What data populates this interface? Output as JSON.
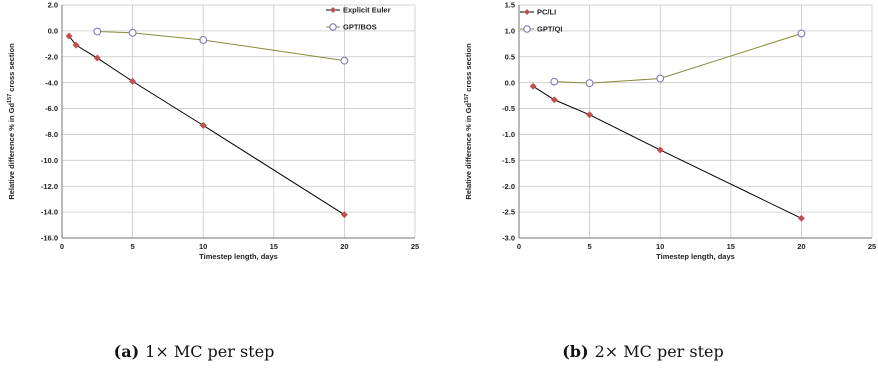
{
  "chart_data": [
    {
      "type": "line",
      "ylabel": "Relative difference % in Gd157 cross section",
      "ylabel_parts": [
        "Relative difference % in Gd",
        "157",
        " cross section"
      ],
      "xlabel": "Timestep length, days",
      "xlim": [
        0,
        25
      ],
      "ylim": [
        -16,
        2
      ],
      "xticks": [
        "0",
        "5",
        "10",
        "15",
        "20",
        "25"
      ],
      "yticks": [
        "2.0",
        "0.0",
        "-2.0",
        "-4.0",
        "-6.0",
        "-8.0",
        "-10.0",
        "-12.0",
        "-14.0",
        "-16.0"
      ],
      "ytick_values": [
        2,
        0,
        -2,
        -4,
        -6,
        -8,
        -10,
        -12,
        -14,
        -16
      ],
      "xtick_values": [
        0,
        5,
        10,
        15,
        20,
        25
      ],
      "grid": true,
      "legend_position": "top-right",
      "series": [
        {
          "name": "Explicit Euler",
          "marker": "diamond",
          "color": "#c0504d",
          "line_color": "#000000",
          "x": [
            0.5,
            1,
            2.5,
            5,
            10,
            20
          ],
          "y": [
            -0.4,
            -1.1,
            -2.1,
            -3.9,
            -7.3,
            -14.2
          ]
        },
        {
          "name": "GPT/BOS",
          "marker": "circle",
          "color": "#7c6fb0",
          "line_color": "#8a8a3a",
          "x": [
            2.5,
            5,
            10,
            20
          ],
          "y": [
            -0.05,
            -0.15,
            -0.7,
            -2.3
          ]
        }
      ],
      "caption_label": "(a)",
      "caption_text": "1× MC per step"
    },
    {
      "type": "line",
      "ylabel": "Relative difference % in Gd157 cross section",
      "ylabel_parts": [
        "Relative difference % in Gd",
        "157",
        " cross section"
      ],
      "xlabel": "Timestep length, days",
      "xlim": [
        0,
        25
      ],
      "ylim": [
        -3,
        1.5
      ],
      "xticks": [
        "0",
        "5",
        "10",
        "15",
        "20",
        "25"
      ],
      "yticks": [
        "1.5",
        "1.0",
        "0.5",
        "0.0",
        "-0.5",
        "-1.0",
        "-1.5",
        "-2.0",
        "-2.5",
        "-3.0"
      ],
      "ytick_values": [
        1.5,
        1,
        0.5,
        0,
        -0.5,
        -1,
        -1.5,
        -2,
        -2.5,
        -3
      ],
      "xtick_values": [
        0,
        5,
        10,
        15,
        20,
        25
      ],
      "grid": true,
      "legend_position": "top-left",
      "series": [
        {
          "name": "PC/LI",
          "marker": "diamond",
          "color": "#c0504d",
          "line_color": "#000000",
          "x": [
            1,
            2.5,
            5,
            10,
            20
          ],
          "y": [
            -0.07,
            -0.33,
            -0.62,
            -1.3,
            -2.62
          ]
        },
        {
          "name": "GPT/QI",
          "marker": "circle",
          "color": "#7c6fb0",
          "line_color": "#8a8a3a",
          "x": [
            2.5,
            5,
            10,
            20
          ],
          "y": [
            0.02,
            -0.01,
            0.08,
            0.95
          ]
        }
      ],
      "caption_label": "(b)",
      "caption_text": "2× MC per step"
    }
  ]
}
